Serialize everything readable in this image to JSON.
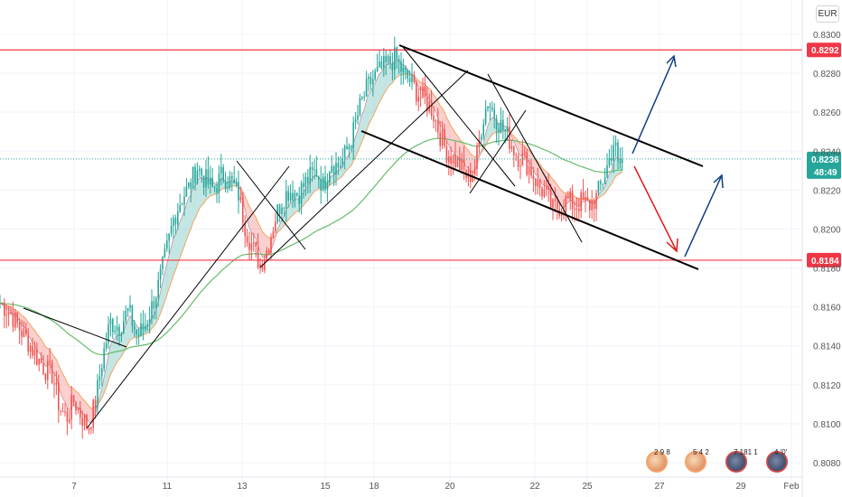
{
  "currency": "EUR",
  "chart_data": {
    "type": "candlestick",
    "x_tick_labels": [
      "7",
      "11",
      "13",
      "15",
      "18",
      "20",
      "22",
      "25",
      "27",
      "29",
      "Feb"
    ],
    "y_tick_labels": [
      "0.8300",
      "0.8280",
      "0.8260",
      "0.8240",
      "0.8220",
      "0.8200",
      "0.8180",
      "0.8160",
      "0.8140",
      "0.8120",
      "0.8100",
      "0.8080"
    ],
    "ylim": [
      0.8078,
      0.8305
    ],
    "horizontal_levels": [
      {
        "value": 0.8292,
        "label": "0.8292",
        "color": "#f23645"
      },
      {
        "value": 0.8184,
        "label": "0.8184",
        "color": "#f23645"
      }
    ],
    "current_price": {
      "value": 0.8236,
      "label": "0.8236",
      "countdown": "48:49",
      "color": "#26a69a"
    },
    "price_path": [
      [
        0,
        0.8162
      ],
      [
        10,
        0.8158
      ],
      [
        20,
        0.815
      ],
      [
        30,
        0.8143
      ],
      [
        40,
        0.8135
      ],
      [
        50,
        0.8128
      ],
      [
        58,
        0.8125
      ],
      [
        66,
        0.8108
      ],
      [
        74,
        0.8103
      ],
      [
        82,
        0.8112
      ],
      [
        90,
        0.8104
      ],
      [
        98,
        0.8098
      ],
      [
        106,
        0.8112
      ],
      [
        114,
        0.8135
      ],
      [
        122,
        0.8152
      ],
      [
        132,
        0.815
      ],
      [
        142,
        0.8158
      ],
      [
        152,
        0.8145
      ],
      [
        160,
        0.815
      ],
      [
        168,
        0.816
      ],
      [
        176,
        0.8172
      ],
      [
        184,
        0.8188
      ],
      [
        192,
        0.8205
      ],
      [
        200,
        0.8215
      ],
      [
        210,
        0.8222
      ],
      [
        218,
        0.8232
      ],
      [
        226,
        0.8226
      ],
      [
        236,
        0.822
      ],
      [
        246,
        0.8228
      ],
      [
        256,
        0.8224
      ],
      [
        264,
        0.8218
      ],
      [
        272,
        0.82
      ],
      [
        280,
        0.819
      ],
      [
        288,
        0.8182
      ],
      [
        296,
        0.819
      ],
      [
        304,
        0.8205
      ],
      [
        312,
        0.8215
      ],
      [
        320,
        0.822
      ],
      [
        330,
        0.8218
      ],
      [
        340,
        0.8225
      ],
      [
        350,
        0.823
      ],
      [
        358,
        0.8222
      ],
      [
        366,
        0.8235
      ],
      [
        374,
        0.8232
      ],
      [
        382,
        0.8238
      ],
      [
        390,
        0.8248
      ],
      [
        398,
        0.8262
      ],
      [
        406,
        0.8272
      ],
      [
        414,
        0.8278
      ],
      [
        422,
        0.8282
      ],
      [
        430,
        0.8285
      ],
      [
        438,
        0.8288
      ],
      [
        446,
        0.828
      ],
      [
        454,
        0.8276
      ],
      [
        462,
        0.827
      ],
      [
        470,
        0.8266
      ],
      [
        478,
        0.8262
      ],
      [
        486,
        0.825
      ],
      [
        494,
        0.824
      ],
      [
        502,
        0.8236
      ],
      [
        510,
        0.8232
      ],
      [
        518,
        0.8226
      ],
      [
        526,
        0.8232
      ],
      [
        534,
        0.8256
      ],
      [
        540,
        0.8266
      ],
      [
        548,
        0.8258
      ],
      [
        556,
        0.8252
      ],
      [
        564,
        0.8246
      ],
      [
        572,
        0.8238
      ],
      [
        580,
        0.8236
      ],
      [
        588,
        0.823
      ],
      [
        596,
        0.8222
      ],
      [
        604,
        0.8218
      ],
      [
        612,
        0.821
      ],
      [
        620,
        0.8212
      ],
      [
        628,
        0.8215
      ],
      [
        636,
        0.8212
      ],
      [
        644,
        0.8214
      ],
      [
        652,
        0.8212
      ],
      [
        660,
        0.8216
      ],
      [
        668,
        0.8226
      ],
      [
        676,
        0.8238
      ],
      [
        680,
        0.8246
      ],
      [
        684,
        0.8232
      ],
      [
        690,
        0.8236
      ]
    ],
    "ma_fast_color": "#f4a460",
    "ma_slow_color": "#66bb6a",
    "up_color": "#26a69a",
    "down_color": "#ef5350",
    "event_labels": [
      "2 9 8",
      "5 4 2",
      "7 181 1",
      "4 '0'"
    ]
  }
}
